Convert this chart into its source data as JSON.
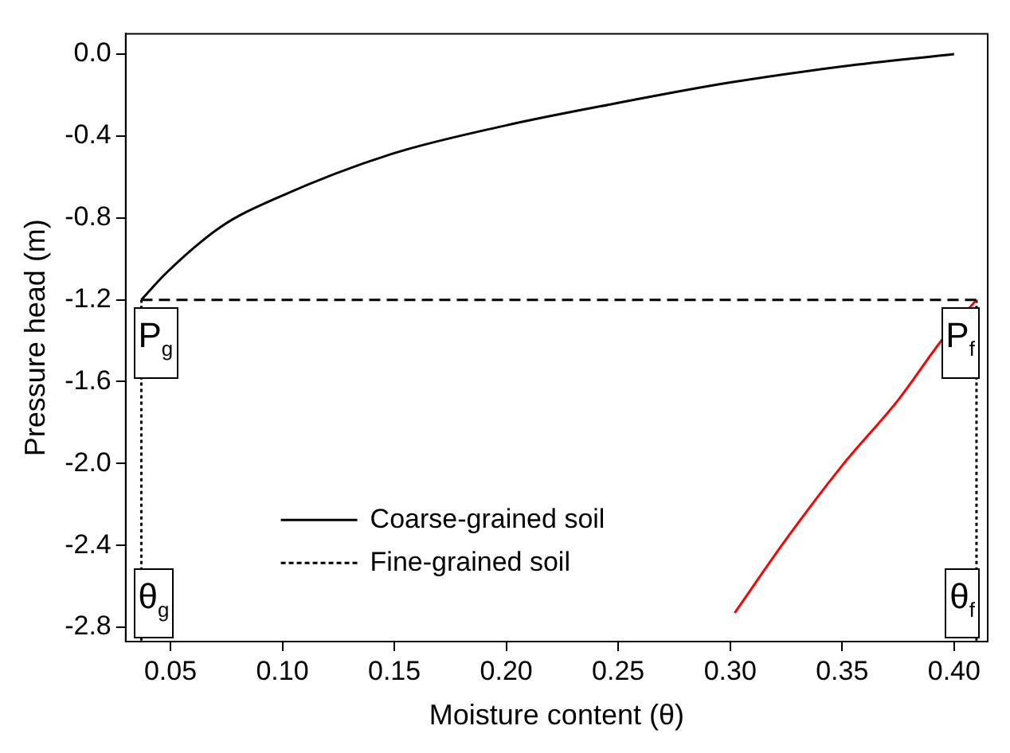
{
  "chart_data": {
    "type": "line",
    "xlabel": "Moisture content (θ)",
    "ylabel": "Pressure head (m)",
    "xlim": [
      0.03,
      0.415
    ],
    "ylim": [
      -2.87,
      0.1
    ],
    "xticks": [
      {
        "value": 0.05,
        "label": "0.05"
      },
      {
        "value": 0.1,
        "label": "0.10"
      },
      {
        "value": 0.15,
        "label": "0.15"
      },
      {
        "value": 0.2,
        "label": "0.20"
      },
      {
        "value": 0.25,
        "label": "0.25"
      },
      {
        "value": 0.3,
        "label": "0.30"
      },
      {
        "value": 0.35,
        "label": "0.35"
      },
      {
        "value": 0.4,
        "label": "0.40"
      }
    ],
    "yticks": [
      {
        "value": 0,
        "label": "0.0"
      },
      {
        "value": -0.4,
        "label": "-0.4"
      },
      {
        "value": -0.8,
        "label": "-0.8"
      },
      {
        "value": -1.2,
        "label": "-1.2"
      },
      {
        "value": -1.6,
        "label": "-1.6"
      },
      {
        "value": -2.0,
        "label": "-2.0"
      },
      {
        "value": -2.4,
        "label": "-2.4"
      },
      {
        "value": -2.8,
        "label": "-2.8"
      }
    ],
    "grid": false,
    "legend": "bottom left",
    "marker": "none",
    "series": [
      {
        "name": "Coarse-grained soil",
        "color": "#000000",
        "line_style": "solid",
        "x": [
          0.037,
          0.048,
          0.073,
          0.098,
          0.148,
          0.199,
          0.249,
          0.299,
          0.35,
          0.4
        ],
        "values": [
          -1.2,
          -1.07,
          -0.84,
          -0.7,
          -0.49,
          -0.35,
          -0.24,
          -0.14,
          -0.06,
          0
        ]
      },
      {
        "name": "Fine-grained soil",
        "color": "#000000",
        "line_style": "dashed",
        "x": [
          0.037,
          0.41
        ],
        "values": [
          -1.2,
          -1.2
        ]
      },
      {
        "color": "#ff0000",
        "line_style": "solid",
        "x": [
          0.302,
          0.325,
          0.35,
          0.375,
          0.395,
          0.41
        ],
        "values": [
          -2.73,
          -2.37,
          -2.01,
          -1.69,
          -1.39,
          -1.2
        ]
      },
      {
        "color": "#000000",
        "line_style": "dotted",
        "x": [
          0.037,
          0.037
        ],
        "values": [
          -1.2,
          -2.87
        ]
      },
      {
        "color": "#000000",
        "line_style": "dotted",
        "x": [
          0.41,
          0.41
        ],
        "values": [
          -1.2,
          -2.87
        ]
      }
    ],
    "annotations": [
      "P$_{g}$",
      "P$_{f}$",
      "θ$_{g}$",
      "θ$_{f}$"
    ]
  }
}
